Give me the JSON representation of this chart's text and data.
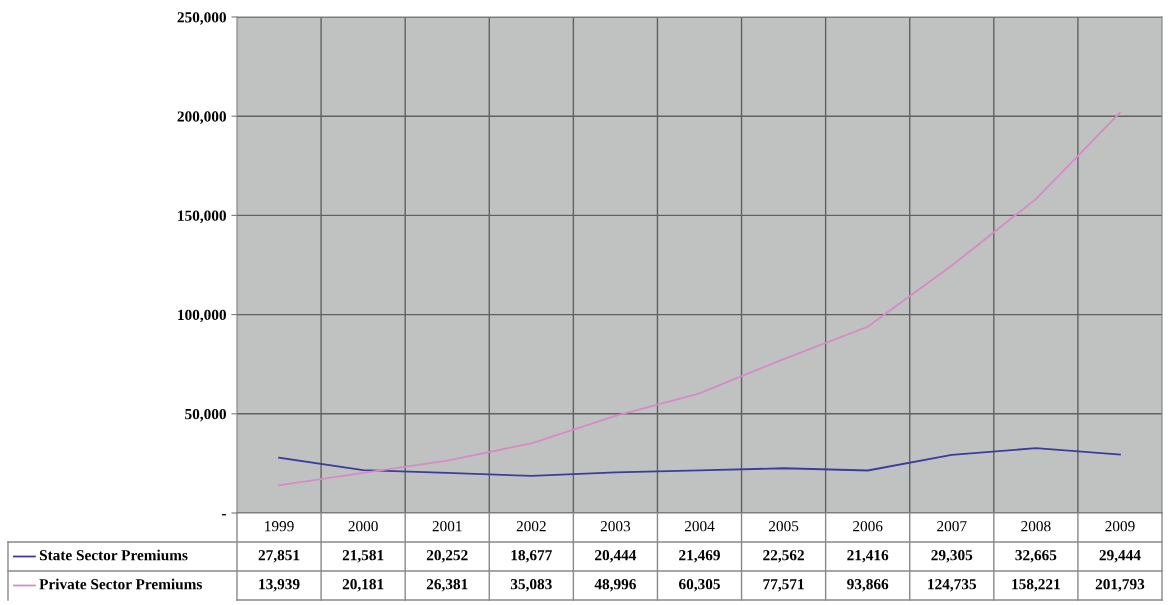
{
  "chart_data": {
    "type": "line",
    "categories": [
      "1999",
      "2000",
      "2001",
      "2002",
      "2003",
      "2004",
      "2005",
      "2006",
      "2007",
      "2008",
      "2009"
    ],
    "series": [
      {
        "name": "State Sector Premiums",
        "color": "#3c3c9c",
        "values": [
          27851,
          21581,
          20252,
          18677,
          20444,
          21469,
          22562,
          21416,
          29305,
          32665,
          29444
        ],
        "value_labels": [
          "27,851",
          "21,581",
          "20,252",
          "18,677",
          "20,444",
          "21,469",
          "22,562",
          "21,416",
          "29,305",
          "32,665",
          "29,444"
        ]
      },
      {
        "name": "Private Sector Premiums",
        "color": "#d48cc4",
        "values": [
          13939,
          20181,
          26381,
          35083,
          48996,
          60305,
          77571,
          93866,
          124735,
          158221,
          201793
        ],
        "value_labels": [
          "13,939",
          "20,181",
          "26,381",
          "35,083",
          "48,996",
          "60,305",
          "77,571",
          "93,866",
          "124,735",
          "158,221",
          "201,793"
        ]
      }
    ],
    "ylim": [
      0,
      250000
    ],
    "yticks": [
      {
        "value": 0,
        "label": "-"
      },
      {
        "value": 50000,
        "label": "50,000"
      },
      {
        "value": 100000,
        "label": "100,000"
      },
      {
        "value": 150000,
        "label": "150,000"
      },
      {
        "value": 200000,
        "label": "200,000"
      },
      {
        "value": 250000,
        "label": "250,000"
      }
    ],
    "grid": true,
    "legend": "bottom left",
    "marker": "none",
    "line_style": "solid"
  }
}
